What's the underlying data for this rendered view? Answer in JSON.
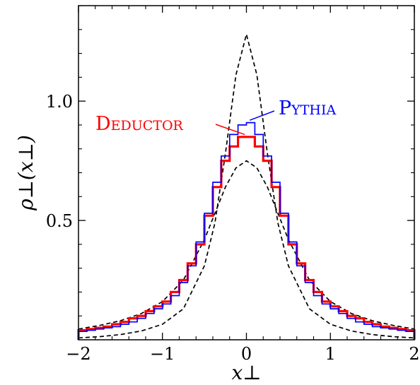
{
  "chart_data": {
    "type": "line",
    "xlabel": "x⊥",
    "ylabel": "ρ⊥(x⊥)",
    "xlim": [
      -2,
      2
    ],
    "ylim": [
      0,
      1.4
    ],
    "x_ticks": [
      -2,
      -1,
      0,
      1,
      2
    ],
    "x_tick_labels": [
      "−2",
      "−1",
      "0",
      "1",
      "2"
    ],
    "y_ticks": [
      0.5,
      1.0
    ],
    "y_tick_labels": [
      "0.5",
      "1.0"
    ],
    "grid": false,
    "legend_placement": "inline annotations with leader lines",
    "bin_edges": [
      -2.0,
      -1.9,
      -1.8,
      -1.7,
      -1.6,
      -1.5,
      -1.4,
      -1.3,
      -1.2,
      -1.1,
      -1.0,
      -0.9,
      -0.8,
      -0.7,
      -0.6,
      -0.5,
      -0.4,
      -0.3,
      -0.2,
      -0.1,
      0.0,
      0.1,
      0.2,
      0.3,
      0.4,
      0.5,
      0.6,
      0.7,
      0.8,
      0.9,
      1.0,
      1.1,
      1.2,
      1.3,
      1.4,
      1.5,
      1.6,
      1.7,
      1.8,
      1.9,
      2.0
    ],
    "series": [
      {
        "name": "Deductor",
        "style": "histogram",
        "color": "#ff0000",
        "values": [
          0.04,
          0.045,
          0.05,
          0.055,
          0.065,
          0.075,
          0.09,
          0.1,
          0.12,
          0.14,
          0.16,
          0.2,
          0.25,
          0.32,
          0.4,
          0.52,
          0.64,
          0.75,
          0.81,
          0.85,
          0.85,
          0.81,
          0.75,
          0.64,
          0.52,
          0.4,
          0.32,
          0.25,
          0.2,
          0.16,
          0.14,
          0.12,
          0.1,
          0.09,
          0.075,
          0.065,
          0.055,
          0.05,
          0.045,
          0.04
        ]
      },
      {
        "name": "Pythia",
        "style": "histogram",
        "color": "#0000ff",
        "values": [
          0.035,
          0.04,
          0.045,
          0.05,
          0.055,
          0.065,
          0.075,
          0.09,
          0.11,
          0.13,
          0.15,
          0.185,
          0.24,
          0.31,
          0.41,
          0.53,
          0.66,
          0.77,
          0.86,
          0.9,
          0.91,
          0.86,
          0.77,
          0.66,
          0.53,
          0.41,
          0.31,
          0.24,
          0.185,
          0.15,
          0.13,
          0.11,
          0.09,
          0.075,
          0.065,
          0.055,
          0.05,
          0.045,
          0.04,
          0.035
        ]
      },
      {
        "style": "dashed curve",
        "color": "#000000",
        "x": [
          -2.0,
          -1.75,
          -1.5,
          -1.25,
          -1.0,
          -0.75,
          -0.5,
          -0.375,
          -0.25,
          -0.125,
          0.0,
          0.125,
          0.25,
          0.375,
          0.5,
          0.75,
          1.0,
          1.25,
          1.5,
          1.75,
          2.0
        ],
        "y": [
          0.008,
          0.013,
          0.022,
          0.037,
          0.065,
          0.13,
          0.31,
          0.49,
          0.78,
          1.11,
          1.28,
          1.11,
          0.78,
          0.49,
          0.31,
          0.13,
          0.065,
          0.037,
          0.022,
          0.013,
          0.008
        ]
      },
      {
        "style": "dashed curve",
        "color": "#000000",
        "x": [
          -2.0,
          -1.75,
          -1.5,
          -1.25,
          -1.0,
          -0.75,
          -0.5,
          -0.375,
          -0.25,
          -0.125,
          0.0,
          0.125,
          0.25,
          0.375,
          0.5,
          0.75,
          1.0,
          1.25,
          1.5,
          1.75,
          2.0
        ],
        "y": [
          0.045,
          0.06,
          0.08,
          0.11,
          0.16,
          0.25,
          0.42,
          0.53,
          0.64,
          0.72,
          0.75,
          0.72,
          0.64,
          0.53,
          0.42,
          0.25,
          0.16,
          0.11,
          0.08,
          0.06,
          0.045
        ]
      }
    ],
    "annotations": [
      {
        "text": "Deductor",
        "color": "#ff0000",
        "series": "Deductor",
        "arrow_to": [
          -0.02,
          0.86
        ]
      },
      {
        "text": "Pythia",
        "color": "#0000ff",
        "series": "Pythia",
        "arrow_to": [
          0.04,
          0.92
        ]
      }
    ]
  }
}
